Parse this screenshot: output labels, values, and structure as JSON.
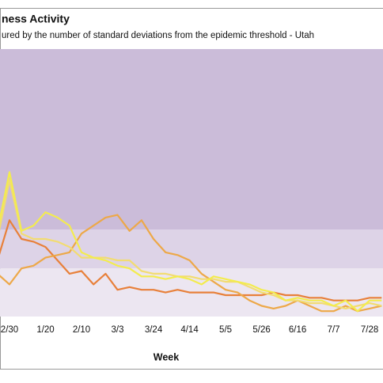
{
  "chart_data": {
    "type": "line",
    "title": "ness Activity",
    "subtitle": "ured by the number of standard deviations from the epidemic threshold - Utah",
    "x_label": "Week",
    "categories": [
      null,
      "2/30",
      null,
      null,
      "1/20",
      null,
      null,
      "2/10",
      null,
      null,
      "3/3",
      null,
      null,
      "3/24",
      null,
      null,
      "4/14",
      null,
      null,
      "5/5",
      null,
      null,
      "5/26",
      null,
      null,
      "6/16",
      null,
      null,
      "7/7",
      null,
      null,
      "7/28",
      null
    ],
    "ylim": [
      0,
      10
    ],
    "bands": [
      {
        "from": 0,
        "to": 1.8,
        "color": "#ece6f1"
      },
      {
        "from": 1.8,
        "to": 3.25,
        "color": "#ddd3e7"
      },
      {
        "from": 3.25,
        "to": 10,
        "color": "#cbbcd9"
      }
    ],
    "series": [
      {
        "color": "#e8803a",
        "values": [
          2.1,
          3.6,
          2.9,
          2.8,
          2.6,
          2.1,
          1.6,
          1.7,
          1.2,
          1.6,
          1.0,
          1.1,
          1.0,
          1.0,
          0.9,
          1.0,
          0.9,
          0.9,
          0.9,
          0.8,
          0.8,
          0.8,
          0.8,
          0.9,
          0.8,
          0.8,
          0.7,
          0.7,
          0.6,
          0.6,
          0.6,
          0.7,
          0.7
        ]
      },
      {
        "color": "#eda848",
        "values": [
          1.6,
          1.2,
          1.8,
          1.9,
          2.2,
          2.3,
          2.4,
          3.1,
          3.4,
          3.7,
          3.8,
          3.2,
          3.6,
          2.9,
          2.4,
          2.3,
          2.1,
          1.6,
          1.3,
          1.0,
          0.9,
          0.6,
          0.4,
          0.3,
          0.4,
          0.6,
          0.4,
          0.2,
          0.2,
          0.4,
          0.2,
          0.3,
          0.4
        ]
      },
      {
        "color": "#f2dc72",
        "values": [
          2.9,
          5.1,
          3.1,
          2.9,
          2.9,
          2.8,
          2.6,
          2.2,
          2.2,
          2.2,
          2.1,
          2.1,
          1.7,
          1.6,
          1.6,
          1.5,
          1.5,
          1.4,
          1.4,
          1.3,
          1.3,
          1.1,
          0.9,
          0.8,
          0.6,
          0.6,
          0.5,
          0.5,
          0.4,
          0.3,
          0.4,
          0.5,
          0.4
        ]
      },
      {
        "color": "#f3ec4e",
        "values": [
          3.2,
          5.4,
          3.2,
          3.4,
          3.9,
          3.7,
          3.4,
          2.4,
          2.2,
          2.1,
          1.9,
          1.8,
          1.5,
          1.5,
          1.4,
          1.5,
          1.4,
          1.2,
          1.5,
          1.4,
          1.3,
          1.2,
          1.0,
          0.9,
          0.6,
          0.7,
          0.6,
          0.6,
          0.4,
          0.6,
          0.2,
          0.6,
          0.6
        ]
      }
    ]
  }
}
